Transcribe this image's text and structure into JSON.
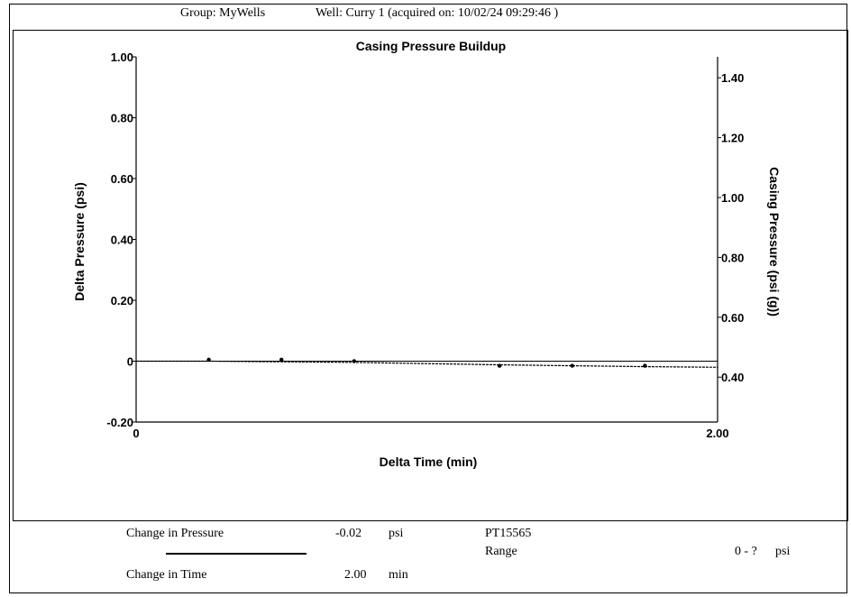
{
  "header": {
    "group": "Group: MyWells",
    "well": "Well: Curry 1 (acquired on: 10/02/24 09:29:46 )"
  },
  "chart_data": {
    "type": "line",
    "title": "Casing Pressure Buildup",
    "xlabel": "Delta Time (min)",
    "ylabel": "Delta Pressure (psi)",
    "y2label": "Casing Pressure (psi (g))",
    "xlim": [
      0,
      2.0
    ],
    "ylim": [
      -0.2,
      1.0
    ],
    "y2lim": [
      0.25,
      1.47
    ],
    "x_tick_labels": [
      "0",
      "2.00"
    ],
    "y_tick_labels": [
      "1.00",
      "0.80",
      "0.60",
      "0.40",
      "0.20",
      "0",
      "-0.20"
    ],
    "y2_tick_labels": [
      "1.40",
      "1.20",
      "1.00",
      "0.80",
      "0.60",
      "0.40"
    ],
    "y_ticks": [
      1.0,
      0.8,
      0.6,
      0.4,
      0.2,
      0,
      -0.2
    ],
    "y2_ticks": [
      1.4,
      1.2,
      1.0,
      0.8,
      0.6,
      0.4
    ],
    "grid": false,
    "series": [
      {
        "x": [
          0,
          0.25,
          0.5,
          0.75,
          1.0,
          1.25,
          1.5,
          1.75,
          2.0
        ],
        "values": [
          0,
          0.0,
          -0.002,
          -0.004,
          -0.008,
          -0.012,
          -0.015,
          -0.018,
          -0.02
        ]
      }
    ],
    "markers": [
      {
        "x": 0.25,
        "y": 0.005
      },
      {
        "x": 0.5,
        "y": 0.005
      },
      {
        "x": 0.75,
        "y": 0.0
      },
      {
        "x": 1.25,
        "y": -0.015
      },
      {
        "x": 1.5,
        "y": -0.015
      },
      {
        "x": 1.75,
        "y": -0.015
      }
    ]
  },
  "footer": {
    "change_pressure_label": "Change in Pressure",
    "change_pressure_value": "-0.02",
    "change_pressure_unit": "psi",
    "change_time_label": "Change in Time",
    "change_time_value": "2.00",
    "change_time_unit": "min",
    "sensor_id": "PT15565",
    "range_label": "Range",
    "range_value": "0 - ?",
    "range_unit": "psi"
  }
}
